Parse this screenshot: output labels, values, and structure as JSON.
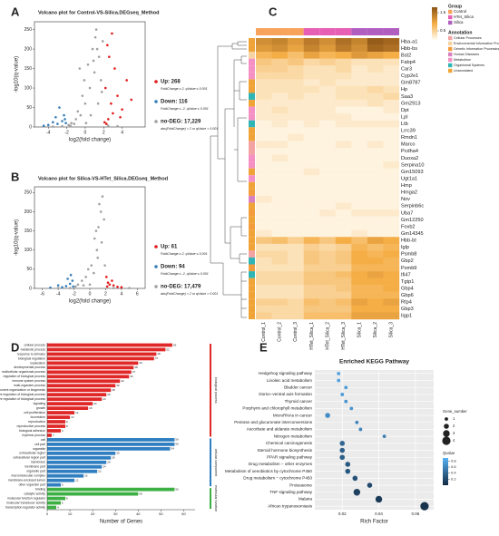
{
  "chart_data": [
    {
      "type": "scatter",
      "panel": "A",
      "title": "Volcano plot for Control-VS-Silica.DEGseq_Method",
      "x_label": "log2(fold change)",
      "y_label": "-log10(q-value)",
      "xlim": [
        -5.5,
        6.5
      ],
      "xticks": [
        -4,
        -2,
        0,
        2,
        4
      ],
      "ylim": [
        0,
        270
      ],
      "yticks": [
        0,
        50,
        100,
        150,
        200,
        250
      ],
      "series": [
        {
          "name": "Up: 268",
          "criterion": "FoldChange ≥ 2, qValue ≤ 0.001",
          "color": "#e41a1c",
          "x": [
            2.1,
            2.5,
            3,
            2.3,
            2.8,
            3.5,
            2.2,
            4,
            3.2,
            2.6,
            4.5,
            2.4,
            5,
            3.8,
            2.9
          ],
          "y": [
            12,
            20,
            35,
            8,
            60,
            80,
            100,
            45,
            150,
            180,
            120,
            210,
            70,
            25,
            240
          ]
        },
        {
          "name": "Down: 116",
          "criterion": "FoldChange ≤ -2, qValue ≤ 0.001",
          "color": "#377eb8",
          "x": [
            -2.1,
            -2.5,
            -3,
            -2.3,
            -3.5,
            -2.8,
            -4,
            -2.2,
            -3.2,
            -4.5
          ],
          "y": [
            10,
            15,
            8,
            30,
            12,
            50,
            5,
            20,
            25,
            3
          ]
        },
        {
          "name": "no-DEG: 17,229",
          "criterion": "abs(FoldChange) < 2 or qValue > 0.001",
          "color": "#a0a0a0",
          "x": [
            -1.8,
            -1.5,
            -1,
            -0.5,
            0,
            0.5,
            1,
            1.5,
            1.9,
            1.2,
            0.8,
            0.3,
            -0.3,
            -0.8,
            1.7,
            0.1,
            -1.2,
            1.4,
            0.6,
            -0.1,
            1.8,
            1.1,
            0.9,
            -1.6,
            -2.5,
            -3.5,
            2.5,
            3.5,
            -0.6,
            1.3
          ],
          "y": [
            5,
            10,
            20,
            30,
            60,
            100,
            140,
            180,
            220,
            250,
            200,
            160,
            80,
            40,
            120,
            10,
            8,
            60,
            30,
            120,
            90,
            230,
            170,
            3,
            2,
            1,
            3,
            2,
            150,
            200
          ]
        }
      ]
    },
    {
      "type": "scatter",
      "panel": "B",
      "title": "Volcano plot for Silica-VS-HTet_Silica.DEGseq_Method",
      "x_label": "log2(fold change)",
      "y_label": "-log10(q-value)",
      "xlim": [
        -7,
        7
      ],
      "xticks": [
        -6,
        -4,
        -2,
        0,
        2,
        4,
        6
      ],
      "ylim": [
        0,
        265
      ],
      "yticks": [
        0,
        50,
        100,
        150,
        200,
        250
      ],
      "series": [
        {
          "name": "Up: 61",
          "criterion": "FoldChange ≥ 2, qValue ≤ 0.001",
          "color": "#e41a1c",
          "x": [
            2.2,
            2.5,
            3,
            2.8,
            3.5,
            2.3,
            4,
            2.1
          ],
          "y": [
            5,
            10,
            8,
            20,
            4,
            15,
            3,
            30
          ]
        },
        {
          "name": "Down: 94",
          "criterion": "FoldChange ≤ -2, qValue ≤ 0.001",
          "color": "#377eb8",
          "x": [
            -2.1,
            -2.5,
            -3,
            -2.2,
            -3.5,
            -4,
            -2.8,
            -5,
            -2.4
          ],
          "y": [
            5,
            12,
            6,
            20,
            3,
            8,
            25,
            2,
            35
          ]
        },
        {
          "name": "no-DEG: 17,479",
          "criterion": "abs(FoldChange) < 2 or qValue > 0.001",
          "color": "#a0a0a0",
          "x": [
            0,
            0.5,
            1,
            1.5,
            1.8,
            1.2,
            0.8,
            0.2,
            -0.5,
            -1,
            -1.5,
            -1.8,
            1.6,
            1.4,
            0.9,
            -0.2,
            0.6,
            1.1,
            -0.8,
            -2.5,
            3,
            -4,
            5,
            1.9
          ],
          "y": [
            10,
            40,
            80,
            120,
            180,
            220,
            150,
            60,
            30,
            20,
            10,
            5,
            240,
            200,
            100,
            50,
            130,
            160,
            8,
            1,
            1,
            1,
            1,
            60
          ]
        }
      ]
    },
    {
      "type": "heatmap",
      "panel": "C",
      "columns": [
        "Control_1",
        "Control_2",
        "Control_3",
        "HTet_Silica_1",
        "HTet_Silica_2",
        "HTet_Silica_3",
        "Silica_1",
        "Silica_2",
        "Silica_3"
      ],
      "rows": [
        "Hba-a1",
        "Hbb-bs",
        "Bst2",
        "Fabp4",
        "Car3",
        "Cyp2e1",
        "Gm8787",
        "Hp",
        "Saa3",
        "Gm2913",
        "Dpt",
        "Lpl",
        "Ltb",
        "Lrrc39",
        "Rmdn1",
        "Marco",
        "Pcdha4",
        "Duoxa2",
        "Serpina10",
        "Gm15093",
        "Ugt1a1",
        "Hmp",
        "Hmga2",
        "Nov",
        "Serpinb6c",
        "Uba7",
        "Gm12250",
        "Foxb2",
        "Gm14345",
        "Hbb-bt",
        "Iglp",
        "Psmb8",
        "Gbp2",
        "Psmb9",
        "Ifi47",
        "Tgtp1",
        "Gbp4",
        "Gbp6",
        "Rtp4",
        "Gbp3",
        "Iigp1"
      ],
      "values": [
        [
          1.2,
          1.3,
          1.1,
          1.4,
          1.2,
          1.5,
          1.3,
          1.7,
          1.6
        ],
        [
          1.1,
          1.2,
          1.0,
          1.3,
          1.1,
          1.4,
          1.2,
          1.6,
          1.5
        ],
        [
          0.8,
          0.9,
          0.7,
          1.0,
          0.8,
          0.9,
          1.1,
          1.0,
          0.9
        ],
        [
          0.6,
          0.5,
          0.6,
          0.4,
          0.5,
          0.4,
          0.3,
          0.3,
          0.3
        ],
        [
          0.5,
          0.5,
          0.4,
          0.3,
          0.3,
          0.4,
          0.2,
          0.3,
          0.2
        ],
        [
          0.4,
          0.4,
          0.4,
          0.3,
          0.3,
          0.3,
          0.2,
          0.2,
          0.2
        ],
        [
          0.3,
          0.3,
          0.3,
          0.2,
          0.3,
          0.2,
          0.2,
          0.2,
          0.2
        ],
        [
          0.3,
          0.3,
          0.3,
          0.3,
          0.2,
          0.3,
          0.3,
          0.4,
          0.3
        ],
        [
          0.3,
          0.2,
          0.3,
          0.2,
          0.2,
          0.3,
          0.3,
          0.3,
          0.4
        ],
        [
          0.2,
          0.2,
          0.2,
          0.2,
          0.2,
          0.2,
          0.2,
          0.3,
          0.2
        ],
        [
          0.2,
          0.3,
          0.2,
          0.2,
          0.2,
          0.1,
          0.1,
          0.1,
          0.2
        ],
        [
          0.2,
          0.2,
          0.2,
          0.2,
          0.2,
          0.2,
          0.1,
          0.1,
          0.1
        ],
        [
          0.1,
          0.2,
          0.1,
          0.2,
          0.1,
          0.2,
          0.2,
          0.2,
          0.2
        ],
        [
          0.1,
          0.1,
          0.1,
          0.1,
          0.1,
          0.1,
          0.1,
          0.1,
          0.1
        ],
        [
          0.1,
          0.1,
          0.2,
          0.1,
          0.1,
          0.1,
          0.1,
          0.1,
          0.1
        ],
        [
          0.2,
          0.2,
          0.1,
          0.1,
          0.1,
          0.2,
          0.1,
          0.2,
          0.1
        ],
        [
          0.1,
          0.1,
          0.1,
          0.1,
          0.1,
          0.1,
          0.1,
          0.1,
          0.1
        ],
        [
          0.1,
          0.2,
          0.1,
          0.1,
          0.1,
          0.1,
          0.1,
          0.1,
          0.1
        ],
        [
          0.1,
          0.1,
          0.1,
          0.1,
          0.1,
          0.1,
          0.1,
          0.1,
          0.2
        ],
        [
          0.1,
          0.1,
          0.1,
          0.2,
          0.1,
          0.1,
          0.1,
          0.1,
          0.1
        ],
        [
          0.1,
          0.1,
          0.1,
          0.1,
          0.1,
          0.1,
          0.1,
          0.1,
          0.1
        ],
        [
          0.1,
          0.1,
          0.1,
          0.1,
          0.1,
          0.1,
          0.1,
          0.1,
          0.1
        ],
        [
          0.1,
          0.1,
          0.1,
          0.1,
          0.1,
          0.1,
          0.1,
          0.1,
          0.1
        ],
        [
          0.2,
          0.1,
          0.1,
          0.1,
          0.1,
          0.1,
          0.1,
          0.1,
          0.1
        ],
        [
          0.1,
          0.1,
          0.1,
          0.1,
          0.1,
          0.2,
          0.1,
          0.1,
          0.1
        ],
        [
          0.1,
          0.1,
          0.1,
          0.1,
          0.2,
          0.1,
          0.2,
          0.2,
          0.2
        ],
        [
          0.1,
          0.1,
          0.1,
          0.1,
          0.1,
          0.1,
          0.1,
          0.1,
          0.1
        ],
        [
          0.1,
          0.1,
          0.1,
          0.1,
          0.1,
          0.1,
          0.1,
          0.1,
          0.1
        ],
        [
          0.2,
          0.1,
          0.1,
          0.1,
          0.1,
          0.1,
          0.2,
          0.1,
          0.1
        ],
        [
          0.6,
          0.7,
          0.5,
          0.8,
          0.6,
          0.9,
          0.7,
          1.0,
          0.9
        ],
        [
          0.3,
          0.3,
          0.3,
          0.5,
          0.4,
          0.5,
          0.8,
          0.7,
          0.8
        ],
        [
          0.4,
          0.4,
          0.3,
          0.6,
          0.5,
          0.6,
          0.9,
          0.8,
          0.9
        ],
        [
          0.3,
          0.4,
          0.3,
          0.6,
          0.5,
          0.6,
          0.9,
          0.9,
          0.8
        ],
        [
          0.3,
          0.3,
          0.3,
          0.5,
          0.5,
          0.5,
          0.8,
          0.8,
          0.8
        ],
        [
          0.4,
          0.4,
          0.4,
          0.6,
          0.6,
          0.7,
          0.9,
          1.0,
          0.9
        ],
        [
          0.4,
          0.4,
          0.4,
          0.6,
          0.6,
          0.6,
          0.9,
          0.9,
          0.9
        ],
        [
          0.3,
          0.3,
          0.3,
          0.5,
          0.5,
          0.6,
          0.8,
          0.8,
          0.9
        ],
        [
          0.3,
          0.3,
          0.3,
          0.5,
          0.5,
          0.5,
          0.8,
          0.8,
          0.8
        ],
        [
          0.5,
          0.5,
          0.4,
          0.7,
          0.6,
          0.7,
          1.0,
          0.9,
          1.0
        ],
        [
          0.4,
          0.4,
          0.4,
          0.6,
          0.6,
          0.6,
          0.9,
          0.9,
          0.9
        ],
        [
          0.5,
          0.4,
          0.4,
          0.7,
          0.7,
          0.7,
          1.0,
          1.0,
          1.0
        ]
      ],
      "clim": [
        0,
        1.8
      ],
      "colorbar_ticks": [
        0.5,
        1.5
      ],
      "colors": [
        "#fffcf2",
        "#f5ad45",
        "#8a5214"
      ],
      "group_title": "Group",
      "groups": [
        {
          "name": "Control",
          "color": "#f7a35c"
        },
        {
          "name": "HTet_Silica",
          "color": "#e75fb5"
        },
        {
          "name": "Silica",
          "color": "#b05fc0"
        }
      ],
      "column_group": [
        0,
        0,
        0,
        1,
        1,
        1,
        2,
        2,
        2
      ],
      "annotation_title": "Annotation",
      "annotations": [
        {
          "name": "Cellular Processes",
          "color": "#f4a3a3"
        },
        {
          "name": "Environmental Information Processing",
          "color": "#f6d3a0"
        },
        {
          "name": "Genetic Information Processing",
          "color": "#f39c3c"
        },
        {
          "name": "Human Diseases",
          "color": "#d980c0"
        },
        {
          "name": "Metabolism",
          "color": "#f590c4"
        },
        {
          "name": "Organismal Systems",
          "color": "#2fb5b5"
        },
        {
          "name": "Unannotated",
          "color": "#f0a437"
        }
      ],
      "row_annotation": [
        6,
        6,
        1,
        4,
        4,
        4,
        6,
        6,
        5,
        6,
        4,
        4,
        5,
        6,
        6,
        0,
        0,
        4,
        4,
        6,
        4,
        6,
        2,
        3,
        6,
        2,
        6,
        2,
        6,
        6,
        6,
        0,
        5,
        2,
        5,
        6,
        6,
        6,
        6,
        6,
        6
      ]
    },
    {
      "type": "hbar",
      "panel": "D",
      "x_label": "Number of Genes",
      "xlim": [
        0,
        65
      ],
      "xticks": [
        0,
        10,
        20,
        30,
        40,
        50,
        60
      ],
      "series": [
        {
          "name": "biological process",
          "color": "#e02828",
          "categories": [
            "cellular process",
            "metabolic process",
            "response to stimulus",
            "biological regulation",
            "localization",
            "developmental process",
            "multicellular organismal process",
            "regulation of biological process",
            "immune system process",
            "multi-organism process",
            "cellular component organization or biogenesis",
            "negative regulation of biological process",
            "positive regulation of biological process",
            "signaling",
            "growth",
            "cell proliferation",
            "locomotion",
            "reproduction",
            "reproductive process",
            "biological adhesion",
            "rhythmic process"
          ],
          "values": [
            55,
            52,
            48,
            47,
            40,
            38,
            37,
            36,
            32,
            30,
            28,
            26,
            24,
            20,
            18,
            12,
            10,
            8,
            8,
            6,
            2
          ]
        },
        {
          "name": "cellular component",
          "color": "#2f7fc1",
          "categories": [
            "cell",
            "cell part",
            "organelle",
            "extracellular region",
            "extracellular region part",
            "membrane",
            "membrane part",
            "organelle part",
            "macromolecular complex",
            "membrane-enclosed lumen",
            "other organism part"
          ],
          "values": [
            56,
            56,
            54,
            30,
            28,
            26,
            24,
            22,
            16,
            12,
            6
          ]
        },
        {
          "name": "molecular function",
          "color": "#3cb043",
          "categories": [
            "binding",
            "catalytic activity",
            "molecular function regulator",
            "molecular transducer activity",
            "transcription regulator activity"
          ],
          "values": [
            56,
            40,
            8,
            6,
            4
          ]
        }
      ]
    },
    {
      "type": "dot",
      "panel": "E",
      "title": "Enriched KEGG Pathway",
      "x_label": "Rich Factor",
      "categories": [
        "Hedgehog signaling pathway",
        "Linoleic acid metabolism",
        "Bladder cancer",
        "Dorso−ventral axis formation",
        "Thyroid cancer",
        "Porphyrin and chlorophyll metabolism",
        "MicroRNAs in cancer",
        "Pentose and glucuronate interconversions",
        "Ascorbate and aldarate metabolism",
        "Nitrogen metabolism",
        "Chemical carcinogenesis",
        "Steroid hormone biosynthesis",
        "PPAR signaling pathway",
        "Drug metabolism − other enzymes",
        "Metabolism of xenobiotics by cytochrome P450",
        "Drug metabolism − cytochrome P450",
        "Proteasome",
        "TNF signaling pathway",
        "Malaria",
        "African trypanosomiasis"
      ],
      "values": [
        0.018,
        0.018,
        0.022,
        0.02,
        0.022,
        0.025,
        0.012,
        0.028,
        0.03,
        0.043,
        0.02,
        0.02,
        0.02,
        0.023,
        0.023,
        0.027,
        0.035,
        0.028,
        0.04,
        0.065
      ],
      "gene_number": [
        1,
        1,
        1,
        1,
        1,
        1,
        2,
        1,
        1,
        1,
        2,
        2,
        2,
        2,
        2,
        2,
        2,
        3,
        3,
        4
      ],
      "qvalue": [
        0.8,
        0.8,
        0.75,
        0.75,
        0.7,
        0.7,
        0.65,
        0.6,
        0.6,
        0.55,
        0.4,
        0.35,
        0.35,
        0.3,
        0.3,
        0.25,
        0.2,
        0.15,
        0.1,
        0.05
      ],
      "xlim": [
        0.005,
        0.07
      ],
      "xticks": [
        0.02,
        0.04,
        0.06
      ],
      "size_title": "Gene_number",
      "size_ticks": [
        1,
        2,
        3,
        4
      ],
      "color_title": "Qvalue",
      "color_lim": [
        0,
        0.9
      ],
      "color_ticks": [
        0.2,
        0.4,
        0.6,
        0.8
      ],
      "colors": [
        "#132b43",
        "#56b1f7"
      ]
    }
  ]
}
